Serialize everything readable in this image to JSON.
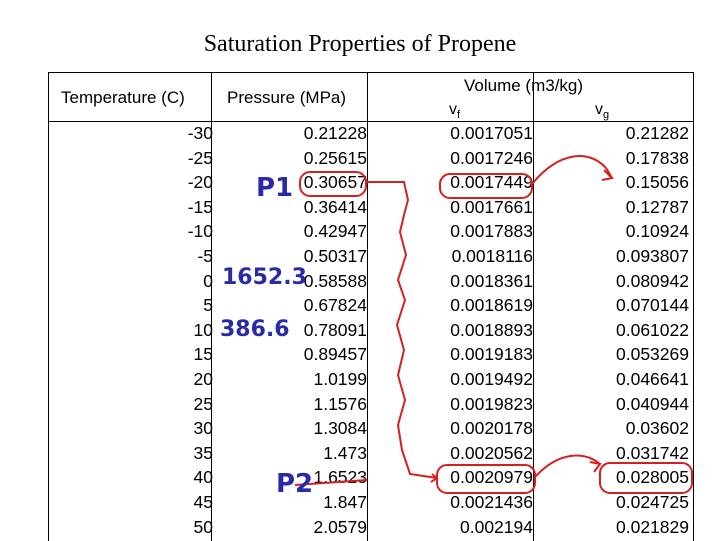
{
  "title": "Saturation Properties of Propene",
  "headers": {
    "temperature": "Temperature (C)",
    "pressure": "Pressure (MPa)",
    "volume": "Volume (m3/kg)",
    "vf_base": "v",
    "vf_sub": "f",
    "vg_base": "v",
    "vg_sub": "g"
  },
  "rows": [
    {
      "t": "-30",
      "p": "0.21228",
      "vf": "0.0017051",
      "vg": "0.21282"
    },
    {
      "t": "-25",
      "p": "0.25615",
      "vf": "0.0017246",
      "vg": "0.17838"
    },
    {
      "t": "-20",
      "p": "0.30657",
      "vf": "0.0017449",
      "vg": "0.15056"
    },
    {
      "t": "-15",
      "p": "0.36414",
      "vf": "0.0017661",
      "vg": "0.12787"
    },
    {
      "t": "-10",
      "p": "0.42947",
      "vf": "0.0017883",
      "vg": "0.10924"
    },
    {
      "t": "-5",
      "p": "0.50317",
      "vf": "0.0018116",
      "vg": "0.093807"
    },
    {
      "t": "0",
      "p": "0.58588",
      "vf": "0.0018361",
      "vg": "0.080942"
    },
    {
      "t": "5",
      "p": "0.67824",
      "vf": "0.0018619",
      "vg": "0.070144"
    },
    {
      "t": "10",
      "p": "0.78091",
      "vf": "0.0018893",
      "vg": "0.061022"
    },
    {
      "t": "15",
      "p": "0.89457",
      "vf": "0.0019183",
      "vg": "0.053269"
    },
    {
      "t": "20",
      "p": "1.0199",
      "vf": "0.0019492",
      "vg": "0.046641"
    },
    {
      "t": "25",
      "p": "1.1576",
      "vf": "0.0019823",
      "vg": "0.040944"
    },
    {
      "t": "30",
      "p": "1.3084",
      "vf": "0.0020178",
      "vg": "0.03602"
    },
    {
      "t": "35",
      "p": "1.473",
      "vf": "0.0020562",
      "vg": "0.031742"
    },
    {
      "t": "40",
      "p": "1.6523",
      "vf": "0.0020979",
      "vg": "0.028005"
    },
    {
      "t": "45",
      "p": "1.847",
      "vf": "0.0021436",
      "vg": "0.024725"
    },
    {
      "t": "50",
      "p": "2.0579",
      "vf": "0.002194",
      "vg": "0.021829"
    }
  ],
  "annotations": {
    "p1": "P1",
    "p2": "P2",
    "h1": "1652.3",
    "h2": "386.6",
    "ink_color": "#2a2aa8",
    "mark_color": "#d42020"
  }
}
